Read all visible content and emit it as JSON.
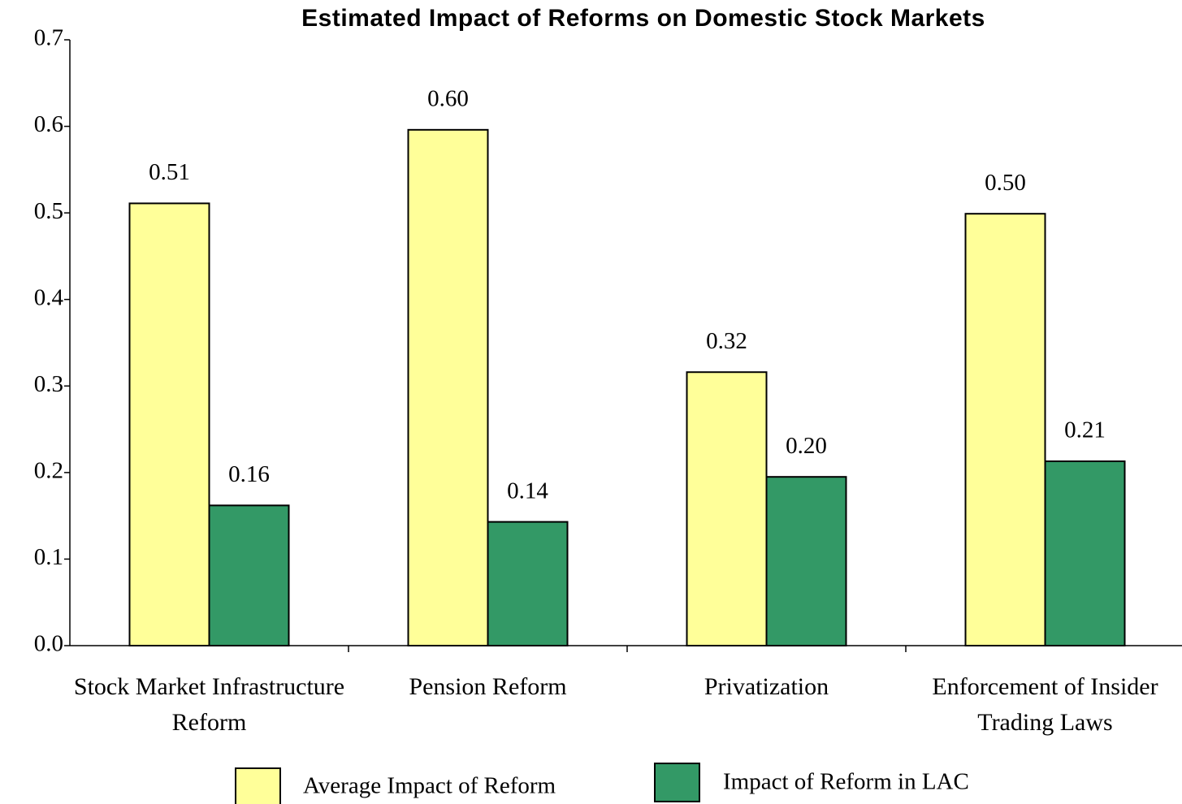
{
  "chart_data": {
    "type": "bar",
    "title": "Estimated Impact of Reforms on Domestic Stock Markets",
    "categories": [
      "Stock Market Infrastructure Reform",
      "Pension Reform",
      "Privatization",
      "Enforcement of Insider Trading Laws"
    ],
    "series": [
      {
        "name": "Average Impact of Reform",
        "color": "#ffff99",
        "values": [
          0.511,
          0.596,
          0.316,
          0.499
        ],
        "value_labels": [
          "0.51",
          "0.60",
          "0.32",
          "0.50"
        ]
      },
      {
        "name": "Impact of Reform in LAC",
        "color": "#339966",
        "values": [
          0.162,
          0.143,
          0.195,
          0.213
        ],
        "value_labels": [
          "0.16",
          "0.14",
          "0.20",
          "0.21"
        ]
      }
    ],
    "ylim": [
      0,
      0.7
    ],
    "yticks": [
      {
        "value": 0,
        "label": "0.0"
      },
      0.1,
      0.2,
      0.3,
      0.4,
      0.5,
      0.6,
      0.7
    ],
    "legend": "bottom"
  }
}
